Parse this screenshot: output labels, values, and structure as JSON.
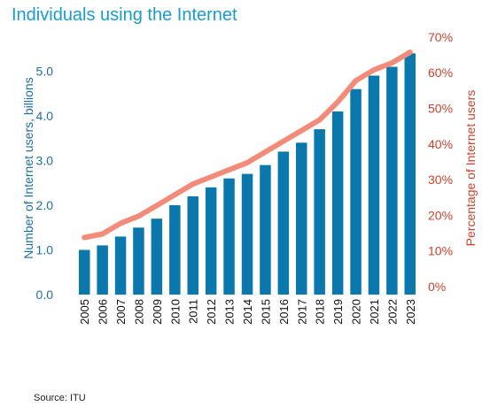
{
  "title": "Individuals using the Internet",
  "source": "Source: ITU",
  "colors": {
    "bar": "#0b78ad",
    "line": "#f38b7b",
    "title": "#1a9bd0"
  },
  "chart_data": {
    "type": "bar",
    "categories": [
      "2005",
      "2006",
      "2007",
      "2008",
      "2009",
      "2010",
      "2011",
      "2012",
      "2013",
      "2014",
      "2015",
      "2016",
      "2017",
      "2018",
      "2019",
      "2020",
      "2021",
      "2022",
      "2023"
    ],
    "series": [
      {
        "name": "Number of Internet users, billions",
        "axis": "left",
        "type": "bar",
        "values": [
          1.0,
          1.1,
          1.3,
          1.5,
          1.7,
          2.0,
          2.2,
          2.4,
          2.6,
          2.7,
          2.9,
          3.2,
          3.4,
          3.7,
          4.1,
          4.6,
          4.9,
          5.1,
          5.4
        ]
      },
      {
        "name": "Percentage of Internet users",
        "axis": "right",
        "type": "line",
        "values": [
          16,
          17,
          20,
          22,
          25,
          28,
          31,
          33,
          35,
          37,
          40,
          43,
          46,
          49,
          54,
          60,
          63,
          65,
          68
        ]
      }
    ],
    "ylabel": "Number of Internet users, billions",
    "ylim": [
      0,
      5.4
    ],
    "yticks": [
      "0.0",
      "1.0",
      "2.0",
      "3.0",
      "4.0",
      "5.0"
    ],
    "y2label": "Percentage of Internet users",
    "y2lim": [
      0,
      70
    ],
    "y2ticks": [
      "0%",
      "10%",
      "20%",
      "30%",
      "40%",
      "50%",
      "60%",
      "70%"
    ],
    "grid": false,
    "legend": "none"
  }
}
